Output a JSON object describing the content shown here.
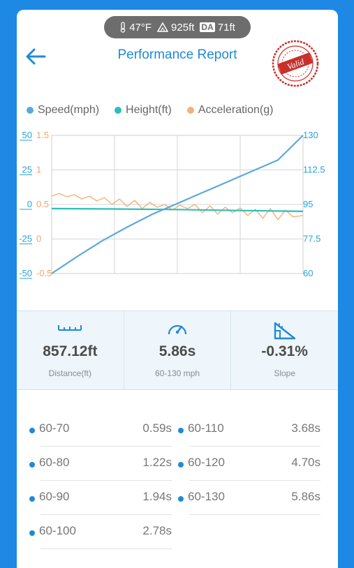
{
  "header": {
    "temperature": "47°F",
    "altitude": "925ft",
    "density_altitude_badge": "DA",
    "density_altitude": "71ft",
    "title": "Performance Report",
    "stamp_text": "Valid"
  },
  "colors": {
    "speed": "#5aa9dc",
    "height": "#2bbfb8",
    "acceleration": "#f2b27c",
    "accent": "#1f8ad6"
  },
  "legend": [
    {
      "label": "Speed(mph)"
    },
    {
      "label": "Height(ft)"
    },
    {
      "label": "Acceleration(g)"
    }
  ],
  "chart_data": {
    "type": "line",
    "axes": {
      "height_ticks": [
        "50",
        "25",
        "0",
        "-25",
        "-50"
      ],
      "accel_ticks": [
        "1.5",
        "1",
        "0.5",
        "0",
        "-0.5"
      ],
      "speed_ticks": [
        "130",
        "112.5",
        "95",
        "77.5",
        "60"
      ],
      "height_range": [
        -50,
        50
      ],
      "accel_range": [
        -0.5,
        1.5
      ],
      "speed_range": [
        60,
        130
      ]
    },
    "grid": true,
    "series": [
      {
        "name": "Speed(mph)",
        "axis": "speed",
        "x": [
          0,
          0.1,
          0.2,
          0.3,
          0.4,
          0.5,
          0.6,
          0.7,
          0.8,
          0.9,
          1.0
        ],
        "values": [
          60,
          68.5,
          76.5,
          83.5,
          90,
          95.5,
          101,
          106.5,
          112,
          117.5,
          130
        ]
      },
      {
        "name": "Height(ft)",
        "axis": "height",
        "x": [
          0,
          0.25,
          0.5,
          0.75,
          1.0
        ],
        "values": [
          -3,
          -3.3,
          -3.7,
          -4.4,
          -5
        ]
      },
      {
        "name": "Acceleration(g)",
        "axis": "accel",
        "x": [
          0,
          0.03,
          0.06,
          0.09,
          0.12,
          0.15,
          0.18,
          0.21,
          0.24,
          0.27,
          0.3,
          0.33,
          0.36,
          0.39,
          0.42,
          0.45,
          0.48,
          0.51,
          0.54,
          0.57,
          0.6,
          0.63,
          0.66,
          0.69,
          0.72,
          0.75,
          0.78,
          0.81,
          0.84,
          0.87,
          0.9,
          0.93,
          0.96,
          1.0
        ],
        "values": [
          0.62,
          0.66,
          0.61,
          0.64,
          0.58,
          0.62,
          0.55,
          0.6,
          0.5,
          0.58,
          0.47,
          0.56,
          0.44,
          0.53,
          0.46,
          0.5,
          0.42,
          0.49,
          0.44,
          0.5,
          0.38,
          0.48,
          0.36,
          0.46,
          0.38,
          0.45,
          0.34,
          0.43,
          0.3,
          0.44,
          0.28,
          0.42,
          0.32,
          0.34
        ]
      }
    ]
  },
  "stats": [
    {
      "icon": "ruler-icon",
      "value": "857.12ft",
      "label": "Distance(ft)"
    },
    {
      "icon": "speedometer-icon",
      "value": "5.86s",
      "label": "60-130 mph"
    },
    {
      "icon": "slope-icon",
      "value": "-0.31%",
      "label": "Slope"
    }
  ],
  "splits": [
    {
      "range": "60-70",
      "time": "0.59s"
    },
    {
      "range": "60-110",
      "time": "3.68s"
    },
    {
      "range": "60-80",
      "time": "1.22s"
    },
    {
      "range": "60-120",
      "time": "4.70s"
    },
    {
      "range": "60-90",
      "time": "1.94s"
    },
    {
      "range": "60-130",
      "time": "5.86s"
    },
    {
      "range": "60-100",
      "time": "2.78s"
    }
  ]
}
